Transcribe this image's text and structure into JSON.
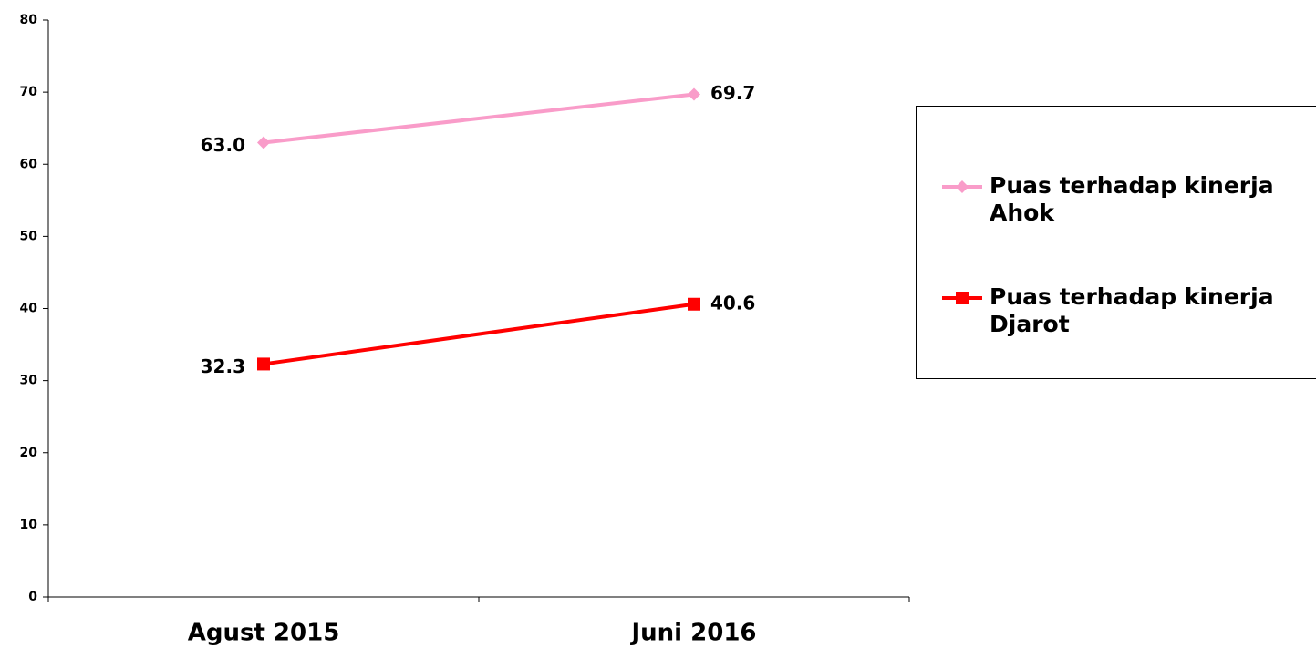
{
  "chart_data": {
    "type": "line",
    "categories": [
      "Agust 2015",
      "Juni 2016"
    ],
    "series": [
      {
        "name": "Puas terhadap kinerja Ahok",
        "color": "#f99cc9",
        "marker": "diamond",
        "values": [
          63.0,
          69.7
        ],
        "value_labels": [
          "63.0",
          "69.7"
        ]
      },
      {
        "name": "Puas terhadap kinerja Djarot",
        "color": "#ff0000",
        "marker": "square",
        "values": [
          32.3,
          40.6
        ],
        "value_labels": [
          "32.3",
          "40.6"
        ]
      }
    ],
    "ylim": [
      0,
      80
    ],
    "yticks": [
      0,
      10,
      20,
      30,
      40,
      50,
      60,
      70,
      80
    ],
    "grid": false,
    "legend": "right"
  }
}
